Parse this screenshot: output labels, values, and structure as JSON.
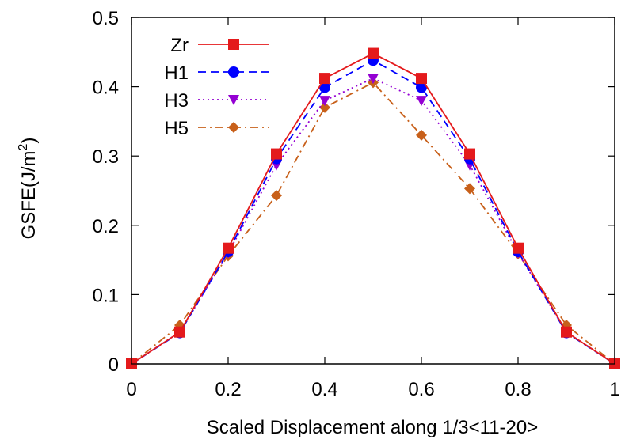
{
  "chart_data": {
    "type": "line",
    "title": "",
    "xlabel": "Scaled Displacement along 1/3<11-20>",
    "ylabel": "GSFE(J/m",
    "ylabel_sup": "2",
    "ylabel_close": ")",
    "xlim": [
      0,
      1
    ],
    "ylim": [
      0,
      0.5
    ],
    "xticks": [
      0,
      0.2,
      0.4,
      0.6,
      0.8,
      1
    ],
    "xtick_labels": [
      "0",
      "0.2",
      "0.4",
      "0.6",
      "0.8",
      "1"
    ],
    "yticks": [
      0,
      0.1,
      0.2,
      0.3,
      0.4,
      0.5
    ],
    "ytick_labels": [
      "0",
      "0.1",
      "0.2",
      "0.3",
      "0.4",
      "0.5"
    ],
    "grid": false,
    "legend_position": "top-left",
    "x": [
      0,
      0.1,
      0.2,
      0.3,
      0.4,
      0.5,
      0.6,
      0.7,
      0.8,
      0.9,
      1.0
    ],
    "series": [
      {
        "name": "Zr",
        "color": "#e41a1c",
        "marker": "square",
        "dash": "solid",
        "values": [
          0,
          0.046,
          0.167,
          0.303,
          0.412,
          0.448,
          0.412,
          0.303,
          0.167,
          0.046,
          0
        ]
      },
      {
        "name": "H1",
        "color": "#0000ff",
        "marker": "circle",
        "dash": "dashed",
        "values": [
          0,
          0.045,
          0.162,
          0.296,
          0.399,
          0.438,
          0.399,
          0.296,
          0.162,
          0.045,
          0
        ]
      },
      {
        "name": "H3",
        "color": "#9400d3",
        "marker": "triangle-down",
        "dash": "dotted",
        "values": [
          0,
          0.046,
          0.16,
          0.287,
          0.38,
          0.412,
          0.38,
          0.287,
          0.16,
          0.046,
          0
        ]
      },
      {
        "name": "H5",
        "color": "#c8601a",
        "marker": "diamond",
        "dash": "dash-dot",
        "values": [
          0,
          0.056,
          0.156,
          0.243,
          0.37,
          0.406,
          0.33,
          0.253,
          0.159,
          0.056,
          0
        ]
      }
    ]
  }
}
